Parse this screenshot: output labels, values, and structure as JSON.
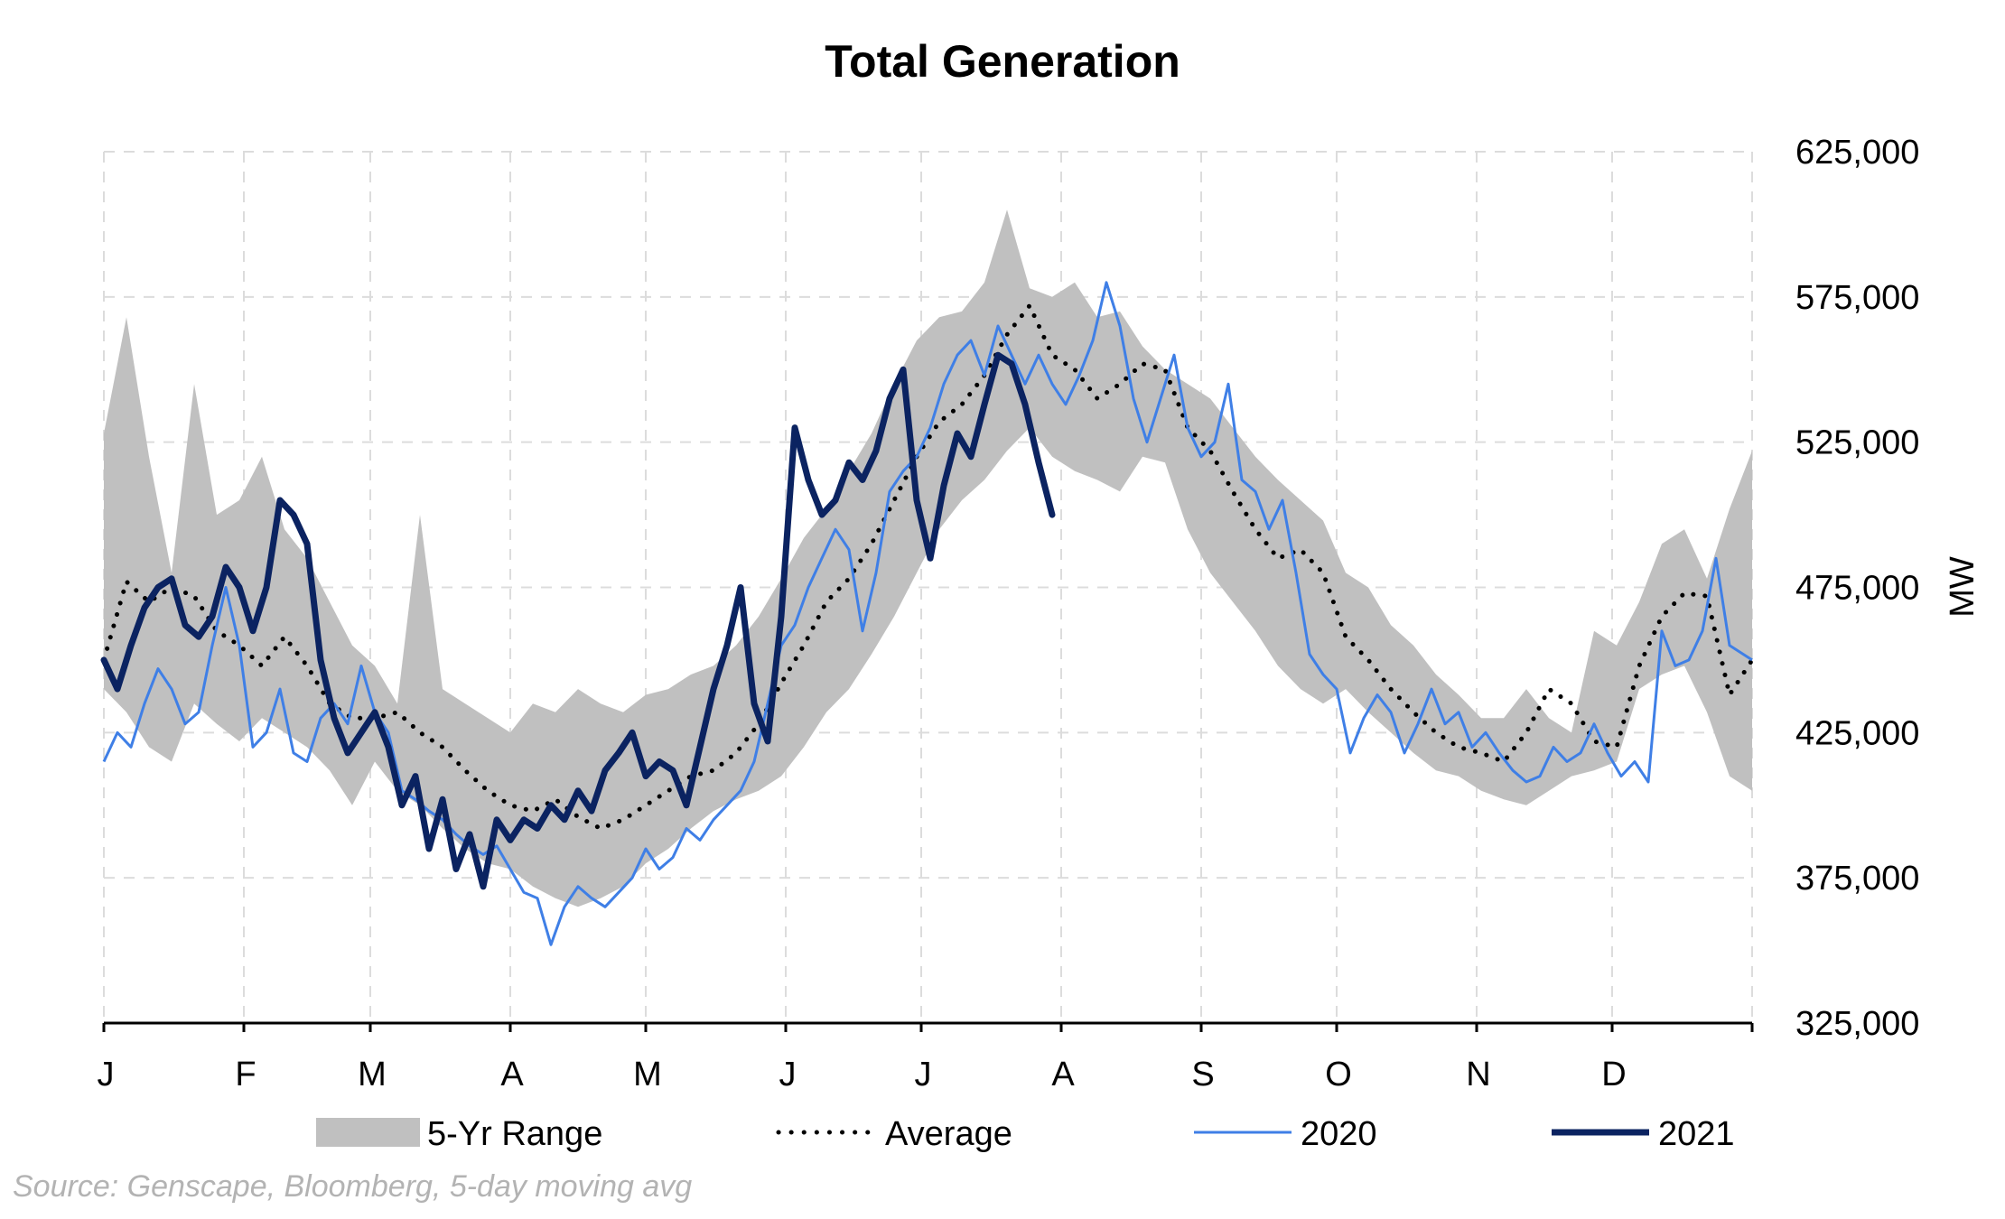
{
  "chart_data": {
    "type": "area",
    "title": "Total Generation",
    "ylabel": "MW",
    "xlabel": "",
    "ylim": [
      325000,
      625000
    ],
    "y_ticks": [
      325000,
      375000,
      425000,
      475000,
      525000,
      575000,
      625000
    ],
    "y_tick_labels": [
      "325,000",
      "375,000",
      "425,000",
      "475,000",
      "525,000",
      "575,000",
      "625,000"
    ],
    "y_axis_position": "right",
    "xlim_day_of_year": [
      0,
      365
    ],
    "month_labels": [
      "J",
      "F",
      "M",
      "A",
      "M",
      "J",
      "J",
      "A",
      "S",
      "O",
      "N",
      "D"
    ],
    "grid": true,
    "legend_position": "bottom",
    "colors": {
      "range": "#c0c0c0",
      "average": "#000000",
      "y2020": "#3f7fe6",
      "y2021": "#0b2361"
    },
    "series": [
      {
        "name": "5-Yr Range",
        "kind": "band",
        "x_day_of_year": [
          0,
          5,
          10,
          15,
          20,
          25,
          30,
          35,
          40,
          45,
          50,
          55,
          60,
          65,
          70,
          75,
          80,
          85,
          90,
          95,
          100,
          105,
          110,
          115,
          120,
          125,
          130,
          135,
          140,
          145,
          150,
          155,
          160,
          165,
          170,
          175,
          180,
          185,
          190,
          195,
          200,
          205,
          210,
          215,
          220,
          225,
          230,
          235,
          240,
          245,
          250,
          255,
          260,
          265,
          270,
          275,
          280,
          285,
          290,
          295,
          300,
          305,
          310,
          315,
          320,
          325,
          330,
          335,
          340,
          345,
          350,
          355,
          360,
          365
        ],
        "low": [
          440000,
          432000,
          420000,
          415000,
          435000,
          428000,
          422000,
          430000,
          425000,
          420000,
          412000,
          400000,
          415000,
          405000,
          400000,
          392000,
          385000,
          380000,
          378000,
          372000,
          368000,
          365000,
          368000,
          372000,
          380000,
          385000,
          392000,
          398000,
          402000,
          405000,
          410000,
          420000,
          432000,
          440000,
          452000,
          465000,
          480000,
          495000,
          505000,
          512000,
          522000,
          530000,
          520000,
          515000,
          512000,
          508000,
          520000,
          518000,
          495000,
          480000,
          470000,
          460000,
          448000,
          440000,
          435000,
          440000,
          432000,
          425000,
          418000,
          412000,
          410000,
          405000,
          402000,
          400000,
          405000,
          410000,
          412000,
          415000,
          440000,
          445000,
          448000,
          432000,
          410000,
          405000
        ],
        "high": [
          528000,
          568000,
          520000,
          480000,
          545000,
          500000,
          505000,
          520000,
          495000,
          485000,
          470000,
          455000,
          448000,
          435000,
          500000,
          440000,
          435000,
          430000,
          425000,
          435000,
          432000,
          440000,
          435000,
          432000,
          438000,
          440000,
          445000,
          448000,
          455000,
          465000,
          478000,
          492000,
          502000,
          515000,
          528000,
          545000,
          560000,
          568000,
          570000,
          580000,
          605000,
          578000,
          575000,
          580000,
          568000,
          570000,
          558000,
          550000,
          545000,
          540000,
          530000,
          520000,
          512000,
          505000,
          498000,
          480000,
          475000,
          462000,
          455000,
          445000,
          438000,
          430000,
          430000,
          440000,
          430000,
          425000,
          460000,
          455000,
          470000,
          490000,
          495000,
          478000,
          502000,
          522000
        ]
      },
      {
        "name": "Average",
        "kind": "dotted-line",
        "x_day_of_year": [
          0,
          5,
          10,
          15,
          20,
          25,
          30,
          35,
          40,
          45,
          50,
          55,
          60,
          65,
          70,
          75,
          80,
          85,
          90,
          95,
          100,
          105,
          110,
          115,
          120,
          125,
          130,
          135,
          140,
          145,
          150,
          155,
          160,
          165,
          170,
          175,
          180,
          185,
          190,
          195,
          200,
          205,
          210,
          215,
          220,
          225,
          230,
          235,
          240,
          245,
          250,
          255,
          260,
          265,
          270,
          275,
          280,
          285,
          290,
          295,
          300,
          305,
          310,
          315,
          320,
          325,
          330,
          335,
          340,
          345,
          350,
          355,
          360,
          365
        ],
        "values": [
          450000,
          477000,
          470000,
          475000,
          472000,
          460000,
          455000,
          448000,
          458000,
          448000,
          435000,
          430000,
          430000,
          432000,
          425000,
          420000,
          412000,
          405000,
          400000,
          398000,
          402000,
          396000,
          392000,
          395000,
          400000,
          405000,
          410000,
          412000,
          418000,
          428000,
          442000,
          455000,
          470000,
          478000,
          490000,
          505000,
          520000,
          532000,
          538000,
          548000,
          562000,
          572000,
          555000,
          550000,
          540000,
          545000,
          552000,
          550000,
          530000,
          522000,
          508000,
          495000,
          485000,
          488000,
          480000,
          458000,
          450000,
          440000,
          432000,
          425000,
          420000,
          418000,
          415000,
          425000,
          440000,
          435000,
          422000,
          420000,
          448000,
          465000,
          473000,
          472000,
          438000,
          450000
        ]
      },
      {
        "name": "2020",
        "kind": "thin-line",
        "x_day_of_year": [
          0,
          3,
          6,
          9,
          12,
          15,
          18,
          21,
          24,
          27,
          30,
          33,
          36,
          39,
          42,
          45,
          48,
          51,
          54,
          57,
          60,
          63,
          66,
          69,
          72,
          75,
          78,
          81,
          84,
          87,
          90,
          93,
          96,
          99,
          102,
          105,
          108,
          111,
          114,
          117,
          120,
          123,
          126,
          129,
          132,
          135,
          138,
          141,
          144,
          147,
          150,
          153,
          156,
          159,
          162,
          165,
          168,
          171,
          174,
          177,
          180,
          183,
          186,
          189,
          192,
          195,
          198,
          201,
          204,
          207,
          210,
          213,
          216,
          219,
          222,
          225,
          228,
          231,
          234,
          237,
          240,
          243,
          246,
          249,
          252,
          255,
          258,
          261,
          264,
          267,
          270,
          273,
          276,
          279,
          282,
          285,
          288,
          291,
          294,
          297,
          300,
          303,
          306,
          309,
          312,
          315,
          318,
          321,
          324,
          327,
          330,
          333,
          336,
          339,
          342,
          345,
          348,
          351,
          354,
          357,
          360,
          365
        ],
        "values": [
          415000,
          425000,
          420000,
          435000,
          447000,
          440000,
          428000,
          432000,
          455000,
          475000,
          455000,
          420000,
          425000,
          440000,
          418000,
          415000,
          430000,
          435000,
          428000,
          448000,
          432000,
          425000,
          405000,
          402000,
          398000,
          395000,
          390000,
          386000,
          383000,
          386000,
          378000,
          370000,
          368000,
          352000,
          365000,
          372000,
          368000,
          365000,
          370000,
          375000,
          385000,
          378000,
          382000,
          392000,
          388000,
          395000,
          400000,
          405000,
          415000,
          435000,
          455000,
          462000,
          475000,
          485000,
          495000,
          488000,
          460000,
          480000,
          508000,
          515000,
          520000,
          530000,
          545000,
          555000,
          560000,
          548000,
          565000,
          555000,
          545000,
          555000,
          545000,
          538000,
          548000,
          560000,
          580000,
          565000,
          540000,
          525000,
          540000,
          555000,
          530000,
          520000,
          525000,
          545000,
          512000,
          508000,
          495000,
          505000,
          480000,
          452000,
          445000,
          440000,
          418000,
          430000,
          438000,
          432000,
          418000,
          428000,
          440000,
          428000,
          432000,
          420000,
          425000,
          418000,
          412000,
          408000,
          410000,
          420000,
          415000,
          418000,
          428000,
          418000,
          410000,
          415000,
          408000,
          460000,
          448000,
          450000,
          460000,
          485000,
          455000,
          450000,
          452000
        ]
      },
      {
        "name": "2021",
        "kind": "thick-line",
        "x_day_of_year": [
          0,
          3,
          6,
          9,
          12,
          15,
          18,
          21,
          24,
          27,
          30,
          33,
          36,
          39,
          42,
          45,
          48,
          51,
          54,
          57,
          60,
          63,
          66,
          69,
          72,
          75,
          78,
          81,
          84,
          87,
          90,
          93,
          96,
          99,
          102,
          105,
          108,
          111,
          114,
          117,
          120,
          123,
          126,
          129,
          132,
          135,
          138,
          141,
          144,
          147,
          150,
          153,
          156,
          159,
          162,
          165,
          168,
          171,
          174,
          177,
          180,
          183,
          186,
          189,
          192,
          195,
          198,
          201,
          204,
          207,
          210
        ],
        "values": [
          450000,
          440000,
          455000,
          468000,
          475000,
          478000,
          462000,
          458000,
          465000,
          482000,
          475000,
          460000,
          475000,
          505000,
          500000,
          490000,
          450000,
          430000,
          418000,
          425000,
          432000,
          420000,
          400000,
          410000,
          385000,
          402000,
          378000,
          390000,
          372000,
          395000,
          388000,
          395000,
          392000,
          400000,
          395000,
          405000,
          398000,
          412000,
          418000,
          425000,
          410000,
          415000,
          412000,
          400000,
          420000,
          440000,
          455000,
          475000,
          435000,
          422000,
          465000,
          530000,
          512000,
          500000,
          505000,
          518000,
          512000,
          522000,
          540000,
          550000,
          505000,
          485000,
          510000,
          528000,
          520000,
          538000,
          555000,
          552000,
          538000,
          518000,
          500000
        ]
      }
    ]
  },
  "legend": {
    "range_label": "5-Yr Range",
    "average_label": "Average",
    "y2020_label": "2020",
    "y2021_label": "2021"
  },
  "source_note": "Source: Genscape, Bloomberg, 5-day moving avg"
}
